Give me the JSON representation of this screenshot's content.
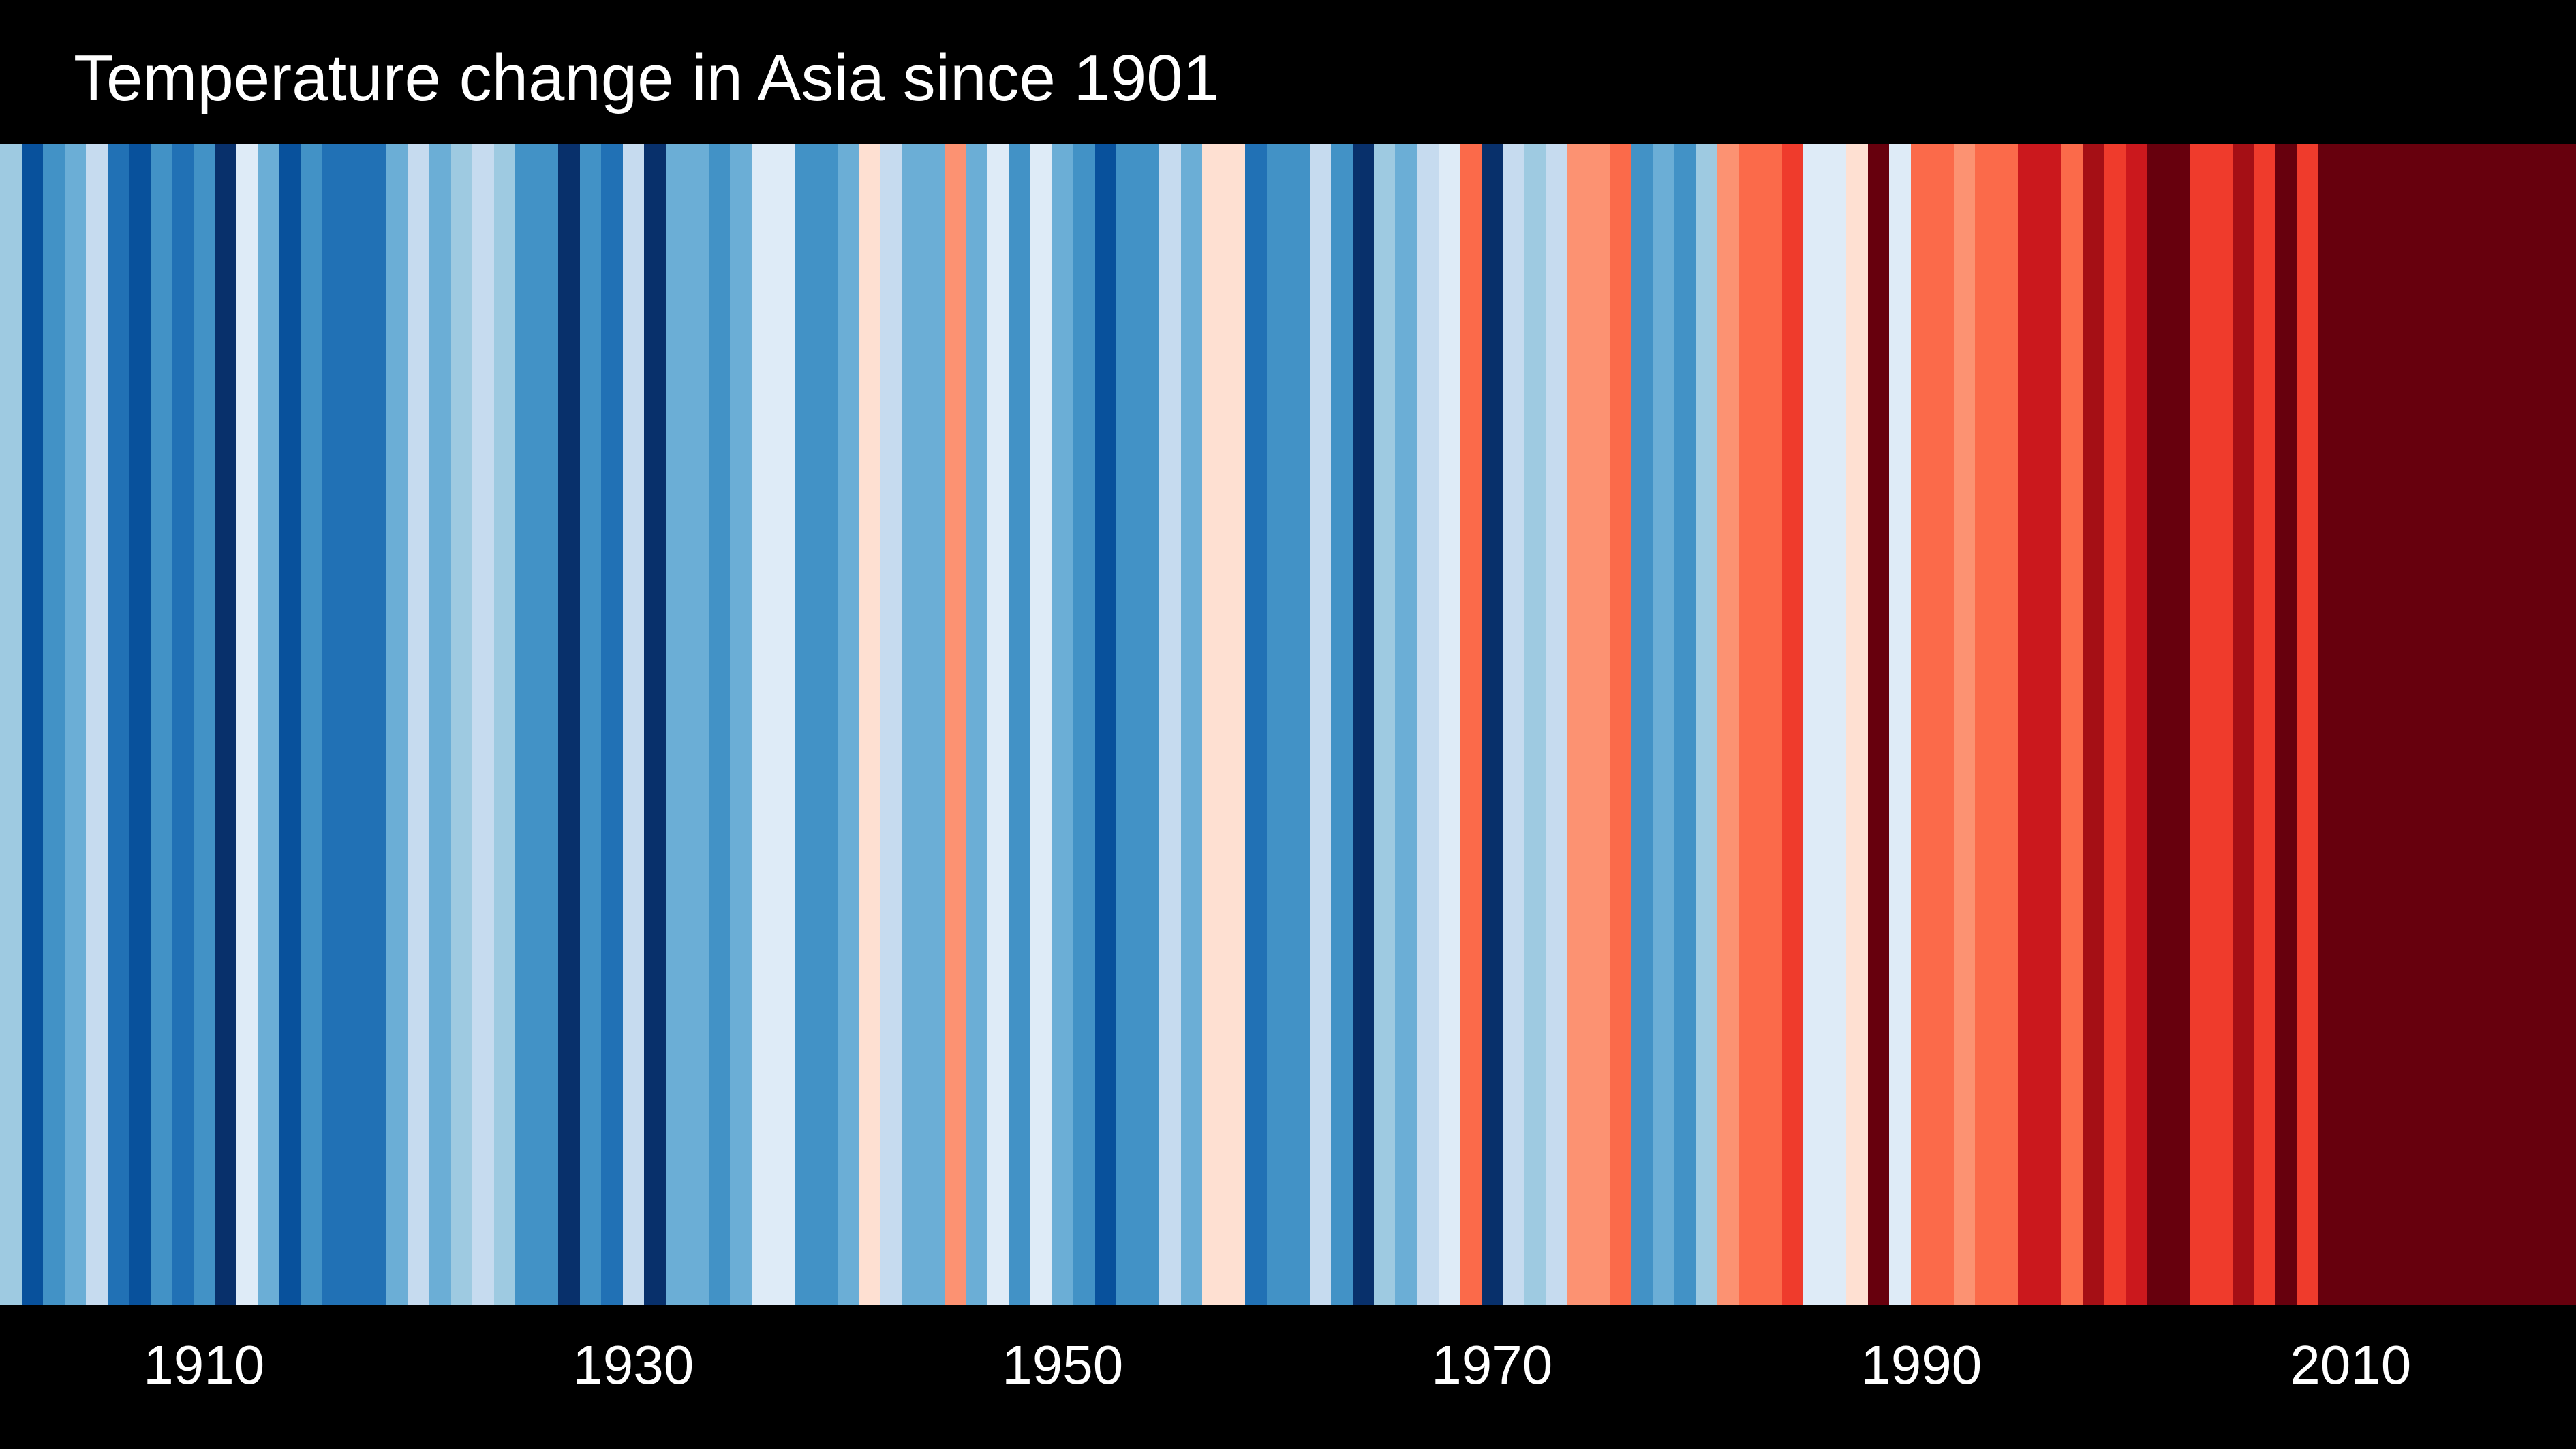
{
  "title": "Temperature change in Asia since 1901",
  "colors": {
    "background": "#000000",
    "text": "#ffffff"
  },
  "chart_data": {
    "type": "heatmap",
    "title": "Temperature change in Asia since 1901",
    "xlabel": "",
    "ylabel": "",
    "xlim": [
      1901,
      2021
    ],
    "x_ticks": [
      1910,
      1930,
      1950,
      1970,
      1990,
      2010
    ],
    "grid": false,
    "legend": "none",
    "colormap": "RdBu_r",
    "color_scale": [
      "#08306b",
      "#08519c",
      "#2171b5",
      "#4292c6",
      "#6baed6",
      "#9ecae1",
      "#c6dbef",
      "#deebf7",
      "#fee0d2",
      "#fcbba1",
      "#fc9272",
      "#fb6a4a",
      "#ef3b2c",
      "#cb181d",
      "#a50f15",
      "#67000d"
    ],
    "series": [
      {
        "years": [
          1901,
          1902,
          1903,
          1904,
          1905,
          1906,
          1907,
          1908,
          1909,
          1910,
          1911,
          1912,
          1913,
          1914,
          1915,
          1916,
          1917,
          1918,
          1919,
          1920,
          1921,
          1922,
          1923,
          1924,
          1925,
          1926,
          1927,
          1928,
          1929,
          1930,
          1931,
          1932,
          1933,
          1934,
          1935,
          1936,
          1937,
          1938,
          1939,
          1940,
          1941,
          1942,
          1943,
          1944,
          1945,
          1946,
          1947,
          1948,
          1949,
          1950,
          1951,
          1952,
          1953,
          1954,
          1955,
          1956,
          1957,
          1958,
          1959,
          1960,
          1961,
          1962,
          1963,
          1964,
          1965,
          1966,
          1967,
          1968,
          1969,
          1970,
          1971,
          1972,
          1973,
          1974,
          1975,
          1976,
          1977,
          1978,
          1979,
          1980,
          1981,
          1982,
          1983,
          1984,
          1985,
          1986,
          1987,
          1988,
          1989,
          1990,
          1991,
          1992,
          1993,
          1994,
          1995,
          1996,
          1997,
          1998,
          1999,
          2000,
          2001,
          2002,
          2003,
          2004,
          2005,
          2006,
          2007,
          2008,
          2009,
          2010,
          2011,
          2012,
          2013,
          2014,
          2015,
          2016,
          2017,
          2018,
          2019,
          2020
        ],
        "color_index": [
          5,
          1,
          3,
          4,
          6,
          2,
          1,
          3,
          2,
          3,
          0,
          7,
          4,
          1,
          3,
          2,
          2,
          2,
          4,
          6,
          4,
          5,
          6,
          5,
          3,
          3,
          0,
          3,
          2,
          6,
          0,
          4,
          4,
          3,
          4,
          7,
          7,
          3,
          3,
          4,
          8,
          6,
          4,
          4,
          10,
          4,
          7,
          3,
          7,
          4,
          3,
          1,
          3,
          3,
          6,
          4,
          8,
          8,
          2,
          3,
          3,
          6,
          3,
          0,
          5,
          4,
          6,
          7,
          11,
          0,
          6,
          5,
          6,
          10,
          10,
          11,
          3,
          4,
          3,
          5,
          10,
          11,
          11,
          12,
          7,
          7,
          8,
          15,
          7,
          11,
          11,
          10,
          11,
          11,
          13,
          13,
          11,
          14,
          12,
          13,
          15,
          15,
          12,
          12,
          14,
          12,
          15,
          12,
          15,
          15,
          15,
          15,
          15,
          15,
          15,
          15,
          15,
          15,
          15,
          15
        ]
      }
    ]
  }
}
